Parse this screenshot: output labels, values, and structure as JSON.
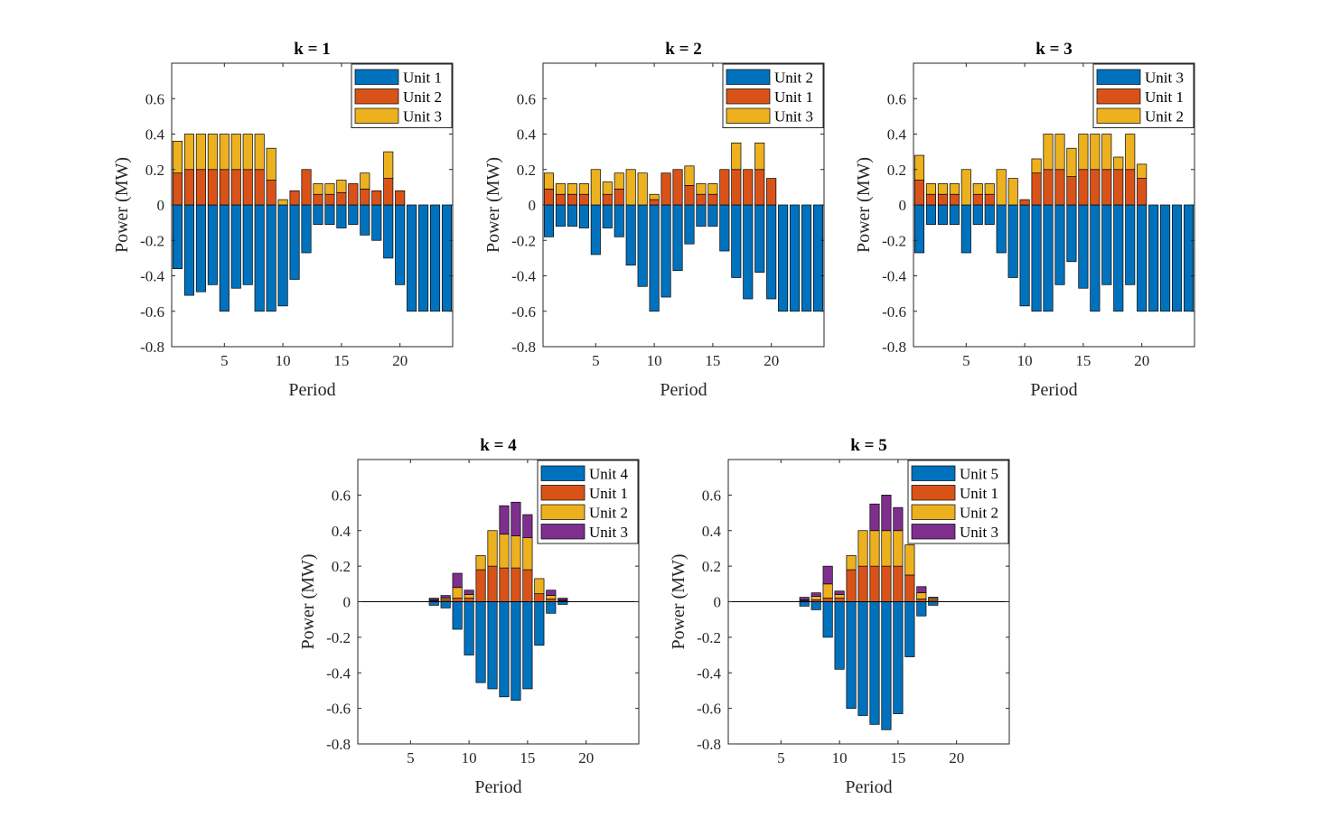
{
  "figure": {
    "background": "#ffffff"
  },
  "colors": {
    "unit_slot_1": "#0072BD",
    "unit_slot_2": "#D95319",
    "unit_slot_3": "#EDB120",
    "unit_slot_4": "#7E2F8E",
    "axes": "#262626",
    "edge": "#000000"
  },
  "chart_data": [
    {
      "type": "bar",
      "stacked": true,
      "title": "k = 1",
      "xlabel": "Period",
      "ylabel": "Power (MW)",
      "xlim": [
        0.5,
        24.5
      ],
      "ylim": [
        -0.8,
        0.8
      ],
      "xticks": [
        5,
        10,
        15,
        20
      ],
      "yticks": [
        -0.8,
        -0.6,
        -0.4,
        -0.2,
        0,
        0.2,
        0.4,
        0.6
      ],
      "zero_line": false,
      "legend_position": "top-right",
      "legend": [
        "Unit 1",
        "Unit 2",
        "Unit 3"
      ],
      "categories": [
        1,
        2,
        3,
        4,
        5,
        6,
        7,
        8,
        9,
        10,
        11,
        12,
        13,
        14,
        15,
        16,
        17,
        18,
        19,
        20,
        21,
        22,
        23,
        24
      ],
      "series": [
        {
          "name": "Unit 1",
          "values": [
            -0.36,
            -0.51,
            -0.49,
            -0.45,
            -0.6,
            -0.47,
            -0.45,
            -0.6,
            -0.6,
            -0.57,
            -0.42,
            -0.27,
            -0.11,
            -0.11,
            -0.13,
            -0.11,
            -0.17,
            -0.2,
            -0.3,
            -0.45,
            -0.6,
            -0.6,
            -0.6,
            -0.6
          ]
        },
        {
          "name": "Unit 2",
          "values": [
            0.18,
            0.2,
            0.2,
            0.2,
            0.2,
            0.2,
            0.2,
            0.2,
            0.14,
            0,
            0.08,
            0.2,
            0.06,
            0.06,
            0.07,
            0.12,
            0.09,
            0.08,
            0.15,
            0.08,
            0,
            0,
            0,
            0
          ]
        },
        {
          "name": "Unit 3",
          "values": [
            0.18,
            0.2,
            0.2,
            0.2,
            0.2,
            0.2,
            0.2,
            0.2,
            0.18,
            0.03,
            0,
            0,
            0.06,
            0.06,
            0.07,
            0,
            0.09,
            0,
            0.15,
            0,
            0,
            0,
            0,
            0
          ]
        }
      ]
    },
    {
      "type": "bar",
      "stacked": true,
      "title": "k = 2",
      "xlabel": "Period",
      "ylabel": "Power (MW)",
      "xlim": [
        0.5,
        24.5
      ],
      "ylim": [
        -0.8,
        0.8
      ],
      "xticks": [
        5,
        10,
        15,
        20
      ],
      "yticks": [
        -0.8,
        -0.6,
        -0.4,
        -0.2,
        0,
        0.2,
        0.4,
        0.6
      ],
      "zero_line": false,
      "legend_position": "top-right",
      "legend": [
        "Unit 2",
        "Unit 1",
        "Unit 3"
      ],
      "categories": [
        1,
        2,
        3,
        4,
        5,
        6,
        7,
        8,
        9,
        10,
        11,
        12,
        13,
        14,
        15,
        16,
        17,
        18,
        19,
        20,
        21,
        22,
        23,
        24
      ],
      "series": [
        {
          "name": "Unit 2",
          "values": [
            -0.18,
            -0.12,
            -0.12,
            -0.13,
            -0.28,
            -0.13,
            -0.18,
            -0.34,
            -0.46,
            -0.6,
            -0.52,
            -0.37,
            -0.22,
            -0.12,
            -0.12,
            -0.26,
            -0.41,
            -0.53,
            -0.38,
            -0.53,
            -0.6,
            -0.6,
            -0.6,
            -0.6
          ]
        },
        {
          "name": "Unit 1",
          "values": [
            0.09,
            0.06,
            0.06,
            0.06,
            0,
            0.06,
            0.09,
            0,
            0,
            0.03,
            0.18,
            0.2,
            0.11,
            0.06,
            0.06,
            0.2,
            0.2,
            0.2,
            0.2,
            0.15,
            0,
            0,
            0,
            0
          ]
        },
        {
          "name": "Unit 3",
          "values": [
            0.09,
            0.06,
            0.06,
            0.06,
            0.2,
            0.07,
            0.09,
            0.2,
            0.18,
            0.03,
            0,
            0,
            0.11,
            0.06,
            0.06,
            0,
            0.15,
            0,
            0.15,
            0,
            0,
            0,
            0,
            0
          ]
        }
      ]
    },
    {
      "type": "bar",
      "stacked": true,
      "title": "k = 3",
      "xlabel": "Period",
      "ylabel": "Power (MW)",
      "xlim": [
        0.5,
        24.5
      ],
      "ylim": [
        -0.8,
        0.8
      ],
      "xticks": [
        5,
        10,
        15,
        20
      ],
      "yticks": [
        -0.8,
        -0.6,
        -0.4,
        -0.2,
        0,
        0.2,
        0.4,
        0.6
      ],
      "zero_line": false,
      "legend_position": "top-right",
      "legend": [
        "Unit 3",
        "Unit 1",
        "Unit 2"
      ],
      "categories": [
        1,
        2,
        3,
        4,
        5,
        6,
        7,
        8,
        9,
        10,
        11,
        12,
        13,
        14,
        15,
        16,
        17,
        18,
        19,
        20,
        21,
        22,
        23,
        24
      ],
      "series": [
        {
          "name": "Unit 3",
          "values": [
            -0.27,
            -0.11,
            -0.11,
            -0.11,
            -0.27,
            -0.11,
            -0.11,
            -0.27,
            -0.41,
            -0.57,
            -0.6,
            -0.6,
            -0.45,
            -0.32,
            -0.47,
            -0.6,
            -0.45,
            -0.6,
            -0.45,
            -0.6,
            -0.6,
            -0.6,
            -0.6,
            -0.6
          ]
        },
        {
          "name": "Unit 1",
          "values": [
            0.14,
            0.06,
            0.06,
            0.06,
            0,
            0.06,
            0.06,
            0,
            0,
            0.03,
            0.18,
            0.2,
            0.2,
            0.16,
            0.2,
            0.2,
            0.2,
            0.2,
            0.2,
            0.15,
            0,
            0,
            0,
            0
          ]
        },
        {
          "name": "Unit 2",
          "values": [
            0.14,
            0.06,
            0.06,
            0.06,
            0.2,
            0.06,
            0.06,
            0.2,
            0.15,
            0,
            0.08,
            0.2,
            0.2,
            0.16,
            0.2,
            0.2,
            0.2,
            0.07,
            0.2,
            0.08,
            0,
            0,
            0,
            0
          ]
        }
      ]
    },
    {
      "type": "bar",
      "stacked": true,
      "title": "k = 4",
      "xlabel": "Period",
      "ylabel": "Power (MW)",
      "xlim": [
        0.5,
        24.5
      ],
      "ylim": [
        -0.8,
        0.8
      ],
      "xticks": [
        5,
        10,
        15,
        20
      ],
      "yticks": [
        -0.8,
        -0.6,
        -0.4,
        -0.2,
        0,
        0.2,
        0.4,
        0.6
      ],
      "zero_line": true,
      "legend_position": "top-right",
      "legend": [
        "Unit 4",
        "Unit 1",
        "Unit 2",
        "Unit 3"
      ],
      "categories": [
        1,
        2,
        3,
        4,
        5,
        6,
        7,
        8,
        9,
        10,
        11,
        12,
        13,
        14,
        15,
        16,
        17,
        18,
        19,
        20,
        21,
        22,
        23,
        24
      ],
      "series": [
        {
          "name": "Unit 4",
          "values": [
            0,
            0,
            0,
            0,
            0,
            0,
            -0.02,
            -0.035,
            -0.155,
            -0.3,
            -0.455,
            -0.49,
            -0.535,
            -0.555,
            -0.49,
            -0.245,
            -0.065,
            -0.015,
            0,
            0,
            0,
            0,
            0,
            0
          ]
        },
        {
          "name": "Unit 1",
          "values": [
            0,
            0,
            0,
            0,
            0,
            0,
            0.005,
            0.01,
            0.02,
            0.02,
            0.18,
            0.2,
            0.19,
            0.19,
            0.18,
            0.045,
            0.015,
            0.005,
            0,
            0,
            0,
            0,
            0,
            0
          ]
        },
        {
          "name": "Unit 2",
          "values": [
            0,
            0,
            0,
            0,
            0,
            0,
            0.005,
            0.01,
            0.06,
            0.02,
            0.08,
            0.2,
            0.19,
            0.18,
            0.18,
            0.085,
            0.02,
            0.005,
            0,
            0,
            0,
            0,
            0,
            0
          ]
        },
        {
          "name": "Unit 3",
          "values": [
            0,
            0,
            0,
            0,
            0,
            0,
            0.01,
            0.015,
            0.08,
            0.025,
            0,
            0,
            0.16,
            0.19,
            0.13,
            0,
            0.03,
            0.01,
            0,
            0,
            0,
            0,
            0,
            0
          ]
        }
      ]
    },
    {
      "type": "bar",
      "stacked": true,
      "title": "k = 5",
      "xlabel": "Period",
      "ylabel": "Power (MW)",
      "xlim": [
        0.5,
        24.5
      ],
      "ylim": [
        -0.8,
        0.8
      ],
      "xticks": [
        5,
        10,
        15,
        20
      ],
      "yticks": [
        -0.8,
        -0.6,
        -0.4,
        -0.2,
        0,
        0.2,
        0.4,
        0.6
      ],
      "zero_line": true,
      "legend_position": "top-right",
      "legend": [
        "Unit 5",
        "Unit 1",
        "Unit 2",
        "Unit 3"
      ],
      "categories": [
        1,
        2,
        3,
        4,
        5,
        6,
        7,
        8,
        9,
        10,
        11,
        12,
        13,
        14,
        15,
        16,
        17,
        18,
        19,
        20,
        21,
        22,
        23,
        24
      ],
      "series": [
        {
          "name": "Unit 5",
          "values": [
            0,
            0,
            0,
            0,
            0,
            0,
            -0.025,
            -0.045,
            -0.2,
            -0.38,
            -0.6,
            -0.64,
            -0.69,
            -0.72,
            -0.63,
            -0.31,
            -0.08,
            -0.02,
            0,
            0,
            0,
            0,
            0,
            0
          ]
        },
        {
          "name": "Unit 1",
          "values": [
            0,
            0,
            0,
            0,
            0,
            0,
            0.005,
            0.01,
            0.02,
            0.02,
            0.18,
            0.2,
            0.2,
            0.2,
            0.2,
            0.15,
            0.015,
            0.01,
            0,
            0,
            0,
            0,
            0,
            0
          ]
        },
        {
          "name": "Unit 2",
          "values": [
            0,
            0,
            0,
            0,
            0,
            0,
            0.005,
            0.02,
            0.08,
            0.02,
            0.08,
            0.2,
            0.2,
            0.2,
            0.2,
            0.17,
            0.035,
            0.01,
            0,
            0,
            0,
            0,
            0,
            0
          ]
        },
        {
          "name": "Unit 3",
          "values": [
            0,
            0,
            0,
            0,
            0,
            0,
            0.015,
            0.02,
            0.1,
            0.02,
            0,
            0,
            0.15,
            0.2,
            0.13,
            0,
            0.035,
            0.005,
            0,
            0,
            0,
            0,
            0,
            0
          ]
        }
      ]
    }
  ]
}
